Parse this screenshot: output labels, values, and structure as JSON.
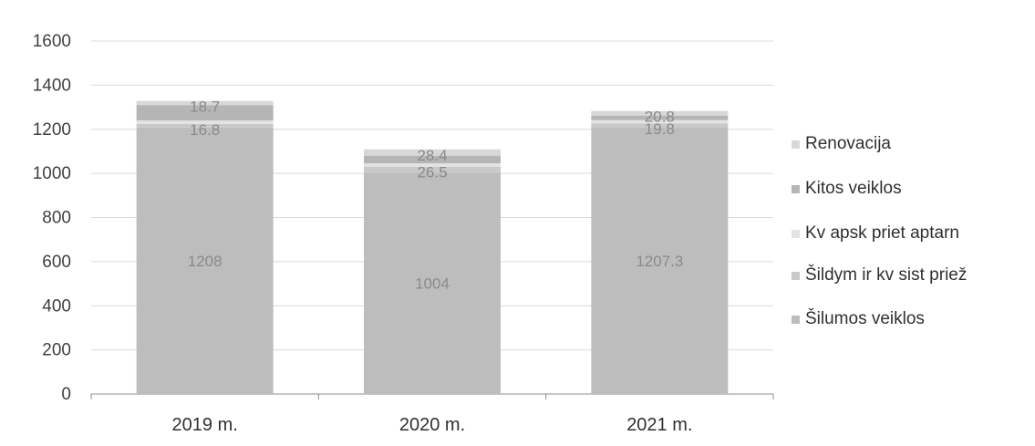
{
  "chart_data": {
    "type": "bar",
    "stacked": true,
    "categories": [
      "2019 m.",
      "2020 m.",
      "2021 m."
    ],
    "ylim": [
      0,
      1600
    ],
    "yticks": [
      0,
      200,
      400,
      600,
      800,
      1000,
      1200,
      1400,
      1600
    ],
    "grid": true,
    "legend_position": "right",
    "series": [
      {
        "name": "Šilumos veiklos",
        "values": [
          1208,
          1004,
          1207.3
        ],
        "color": "#bdbdbd",
        "labels": [
          "1208",
          "1004",
          "1207.3"
        ]
      },
      {
        "name": "Šildym ir kv sist priež",
        "values": [
          16.8,
          26.5,
          19.8
        ],
        "color": "#c9c9c9",
        "labels": [
          "16.8",
          "26.5",
          "19.8"
        ]
      },
      {
        "name": "Kv apsk priet aptarn",
        "values": [
          15,
          15,
          15
        ],
        "color": "#e3e3e3",
        "labels": [
          "",
          "",
          ""
        ]
      },
      {
        "name": "Kitos veiklos",
        "values": [
          70,
          35,
          20
        ],
        "color": "#b5b5b5",
        "labels": [
          "",
          "",
          ""
        ]
      },
      {
        "name": "Renovacija",
        "values": [
          18.7,
          28.4,
          20.8
        ],
        "color": "#d8d8d8",
        "labels": [
          "18.7",
          "28.4",
          "20.8"
        ]
      }
    ]
  },
  "legend": {
    "items": [
      "Renovacija",
      "Kitos veiklos",
      "Kv apsk priet aptarn",
      "Šildym ir kv sist priež",
      "Šilumos veiklos"
    ]
  }
}
